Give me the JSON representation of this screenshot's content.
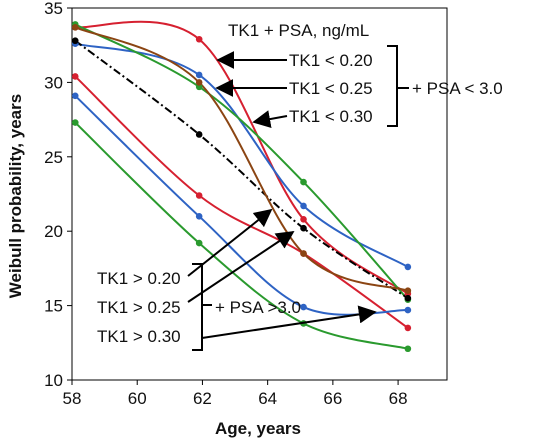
{
  "chart_data": {
    "type": "line",
    "xlabel": "Age, years",
    "ylabel": "Weibull probability, years",
    "xlim": [
      58,
      69.5
    ],
    "ylim": [
      10,
      35
    ],
    "x_ticks": [
      "58",
      "60",
      "62",
      "64",
      "66",
      "68"
    ],
    "y_ticks": [
      "10",
      "15",
      "20",
      "25",
      "30",
      "35"
    ],
    "grid": false,
    "legend_title": "TK1 + PSA, ng/mL",
    "upper_labels": [
      "TK1 < 0.20",
      "TK1 < 0.25",
      "TK1 < 0.30"
    ],
    "upper_group_label": "+ PSA < 3.0",
    "lower_labels": [
      "TK1 > 0.20",
      "TK1 > 0.25",
      "TK1 > 0.30"
    ],
    "lower_group_label": "+ PSA >3.0",
    "series": [
      {
        "color": "#d62030",
        "style": "solid",
        "x": [
          58.1,
          61.9,
          65.1,
          68.3
        ],
        "y": [
          33.7,
          32.9,
          20.8,
          15.8
        ]
      },
      {
        "color": "#2e63c4",
        "style": "solid",
        "x": [
          58.1,
          61.9,
          65.1,
          68.3
        ],
        "y": [
          32.6,
          30.5,
          21.7,
          17.6
        ]
      },
      {
        "color": "#2a9a2e",
        "style": "solid",
        "x": [
          58.1,
          61.9,
          65.1,
          68.3
        ],
        "y": [
          33.9,
          29.7,
          23.3,
          15.4
        ]
      },
      {
        "color": "#000000",
        "style": "dashdot",
        "x": [
          58.1,
          61.9,
          65.1,
          68.3
        ],
        "y": [
          32.8,
          26.5,
          20.2,
          15.5
        ]
      },
      {
        "color": "#d62030",
        "style": "solid",
        "x": [
          58.1,
          61.9,
          65.1,
          68.3
        ],
        "y": [
          30.4,
          22.4,
          18.5,
          13.5
        ]
      },
      {
        "color": "#2e63c4",
        "style": "solid",
        "x": [
          58.1,
          61.9,
          65.1,
          68.3
        ],
        "y": [
          29.1,
          21.0,
          14.9,
          14.7
        ]
      },
      {
        "color": "#2a9a2e",
        "style": "solid",
        "x": [
          58.1,
          61.9,
          65.1,
          68.3
        ],
        "y": [
          27.3,
          19.2,
          13.8,
          12.1
        ]
      },
      {
        "color": "#8b4513",
        "style": "solid",
        "x": [
          58.1,
          61.9,
          65.1,
          68.3
        ],
        "y": [
          33.7,
          30.0,
          18.5,
          16.0
        ]
      }
    ]
  }
}
